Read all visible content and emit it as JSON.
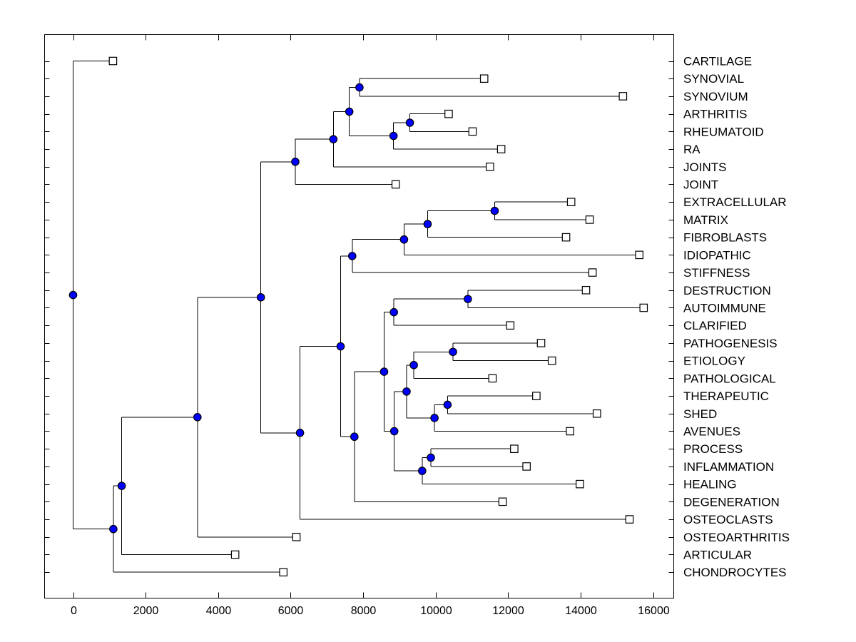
{
  "figure": {
    "background_color": "#ffffff",
    "axes_line_color": "#000000"
  },
  "chart_data": {
    "type": "dendrogram",
    "orientation": "left-to-right",
    "title": "",
    "xlabel": "",
    "ylabel": "",
    "x_axis": {
      "min": 0,
      "max": 16000,
      "tick_values": [
        0,
        2000,
        4000,
        6000,
        8000,
        10000,
        12000,
        14000,
        16000
      ]
    },
    "grid": false,
    "legend": null,
    "style": {
      "line_color": "#000000",
      "internal_node_fill": "#0000ff",
      "internal_node_edge": "#000000",
      "leaf_marker_fill": "#ffffff",
      "leaf_marker_edge": "#000000"
    },
    "leaves": [
      {
        "label": "CARTILAGE",
        "value": 1100
      },
      {
        "label": "SYNOVIAL",
        "value": 11340
      },
      {
        "label": "SYNOVIUM",
        "value": 15170
      },
      {
        "label": "ARTHRITIS",
        "value": 10360
      },
      {
        "label": "RHEUMATOID",
        "value": 11020
      },
      {
        "label": "RA",
        "value": 11810
      },
      {
        "label": "JOINTS",
        "value": 11500
      },
      {
        "label": "JOINT",
        "value": 8900
      },
      {
        "label": "EXTRACELLULAR",
        "value": 13740
      },
      {
        "label": "MATRIX",
        "value": 14250
      },
      {
        "label": "FIBROBLASTS",
        "value": 13600
      },
      {
        "label": "IDIOPATHIC",
        "value": 15620
      },
      {
        "label": "STIFFNESS",
        "value": 14330
      },
      {
        "label": "DESTRUCTION",
        "value": 14150
      },
      {
        "label": "AUTOIMMUNE",
        "value": 15740
      },
      {
        "label": "CLARIFIED",
        "value": 12060
      },
      {
        "label": "PATHOGENESIS",
        "value": 12910
      },
      {
        "label": "ETIOLOGY",
        "value": 13210
      },
      {
        "label": "PATHOLOGICAL",
        "value": 11570
      },
      {
        "label": "THERAPEUTIC",
        "value": 12780
      },
      {
        "label": "SHED",
        "value": 14450
      },
      {
        "label": "AVENUES",
        "value": 13710
      },
      {
        "label": "PROCESS",
        "value": 12170
      },
      {
        "label": "INFLAMMATION",
        "value": 12510
      },
      {
        "label": "HEALING",
        "value": 13980
      },
      {
        "label": "DEGENERATION",
        "value": 11850
      },
      {
        "label": "OSTEOCLASTS",
        "value": 15350
      },
      {
        "label": "OSTEOARTHRITIS",
        "value": 6160
      },
      {
        "label": "ARTICULAR",
        "value": 4470
      },
      {
        "label": "CHONDROCYTES",
        "value": 5800
      }
    ],
    "tree": {
      "value": 0,
      "children": [
        {
          "leaf": "CARTILAGE"
        },
        {
          "value": 1110,
          "children": [
            {
              "value": 1340,
              "children": [
                {
                  "value": 3430,
                  "children": [
                    {
                      "value": 5180,
                      "children": [
                        {
                          "value": 6130,
                          "children": [
                            {
                              "value": 7180,
                              "children": [
                                {
                                  "value": 7620,
                                  "children": [
                                    {
                                      "value": 7900,
                                      "children": [
                                        {
                                          "leaf": "SYNOVIAL"
                                        },
                                        {
                                          "leaf": "SYNOVIUM"
                                        }
                                      ]
                                    },
                                    {
                                      "value": 8840,
                                      "children": [
                                        {
                                          "value": 9290,
                                          "children": [
                                            {
                                              "leaf": "ARTHRITIS"
                                            },
                                            {
                                              "leaf": "RHEUMATOID"
                                            }
                                          ]
                                        },
                                        {
                                          "leaf": "RA"
                                        }
                                      ]
                                    }
                                  ]
                                },
                                {
                                  "leaf": "JOINTS"
                                }
                              ]
                            },
                            {
                              "leaf": "JOINT"
                            }
                          ]
                        },
                        {
                          "value": 6260,
                          "children": [
                            {
                              "value": 7380,
                              "children": [
                                {
                                  "value": 7700,
                                  "children": [
                                    {
                                      "value": 9130,
                                      "children": [
                                        {
                                          "value": 9780,
                                          "children": [
                                            {
                                              "value": 11630,
                                              "children": [
                                                {
                                                  "leaf": "EXTRACELLULAR"
                                                },
                                                {
                                                  "leaf": "MATRIX"
                                                }
                                              ]
                                            },
                                            {
                                              "leaf": "FIBROBLASTS"
                                            }
                                          ]
                                        },
                                        {
                                          "leaf": "IDIOPATHIC"
                                        }
                                      ]
                                    },
                                    {
                                      "leaf": "STIFFNESS"
                                    }
                                  ]
                                },
                                {
                                  "value": 7760,
                                  "children": [
                                    {
                                      "value": 8580,
                                      "children": [
                                        {
                                          "value": 8850,
                                          "children": [
                                            {
                                              "value": 10890,
                                              "children": [
                                                {
                                                  "leaf": "DESTRUCTION"
                                                },
                                                {
                                                  "leaf": "AUTOIMMUNE"
                                                }
                                              ]
                                            },
                                            {
                                              "leaf": "CLARIFIED"
                                            }
                                          ]
                                        },
                                        {
                                          "value": 8860,
                                          "children": [
                                            {
                                              "value": 9200,
                                              "children": [
                                                {
                                                  "value": 9400,
                                                  "children": [
                                                    {
                                                      "value": 10480,
                                                      "children": [
                                                        {
                                                          "leaf": "PATHOGENESIS"
                                                        },
                                                        {
                                                          "leaf": "ETIOLOGY"
                                                        }
                                                      ]
                                                    },
                                                    {
                                                      "leaf": "PATHOLOGICAL"
                                                    }
                                                  ]
                                                },
                                                {
                                                  "value": 9970,
                                                  "children": [
                                                    {
                                                      "value": 10330,
                                                      "children": [
                                                        {
                                                          "leaf": "THERAPEUTIC"
                                                        },
                                                        {
                                                          "leaf": "SHED"
                                                        }
                                                      ]
                                                    },
                                                    {
                                                      "leaf": "AVENUES"
                                                    }
                                                  ]
                                                }
                                              ]
                                            },
                                            {
                                              "value": 9630,
                                              "children": [
                                                {
                                                  "value": 9870,
                                                  "children": [
                                                    {
                                                      "leaf": "PROCESS"
                                                    },
                                                    {
                                                      "leaf": "INFLAMMATION"
                                                    }
                                                  ]
                                                },
                                                {
                                                  "leaf": "HEALING"
                                                }
                                              ]
                                            }
                                          ]
                                        }
                                      ]
                                    },
                                    {
                                      "leaf": "DEGENERATION"
                                    }
                                  ]
                                }
                              ]
                            },
                            {
                              "leaf": "OSTEOCLASTS"
                            }
                          ]
                        }
                      ]
                    },
                    {
                      "leaf": "OSTEOARTHRITIS"
                    }
                  ]
                },
                {
                  "leaf": "ARTICULAR"
                }
              ]
            },
            {
              "leaf": "CHONDROCYTES"
            }
          ]
        }
      ]
    }
  }
}
